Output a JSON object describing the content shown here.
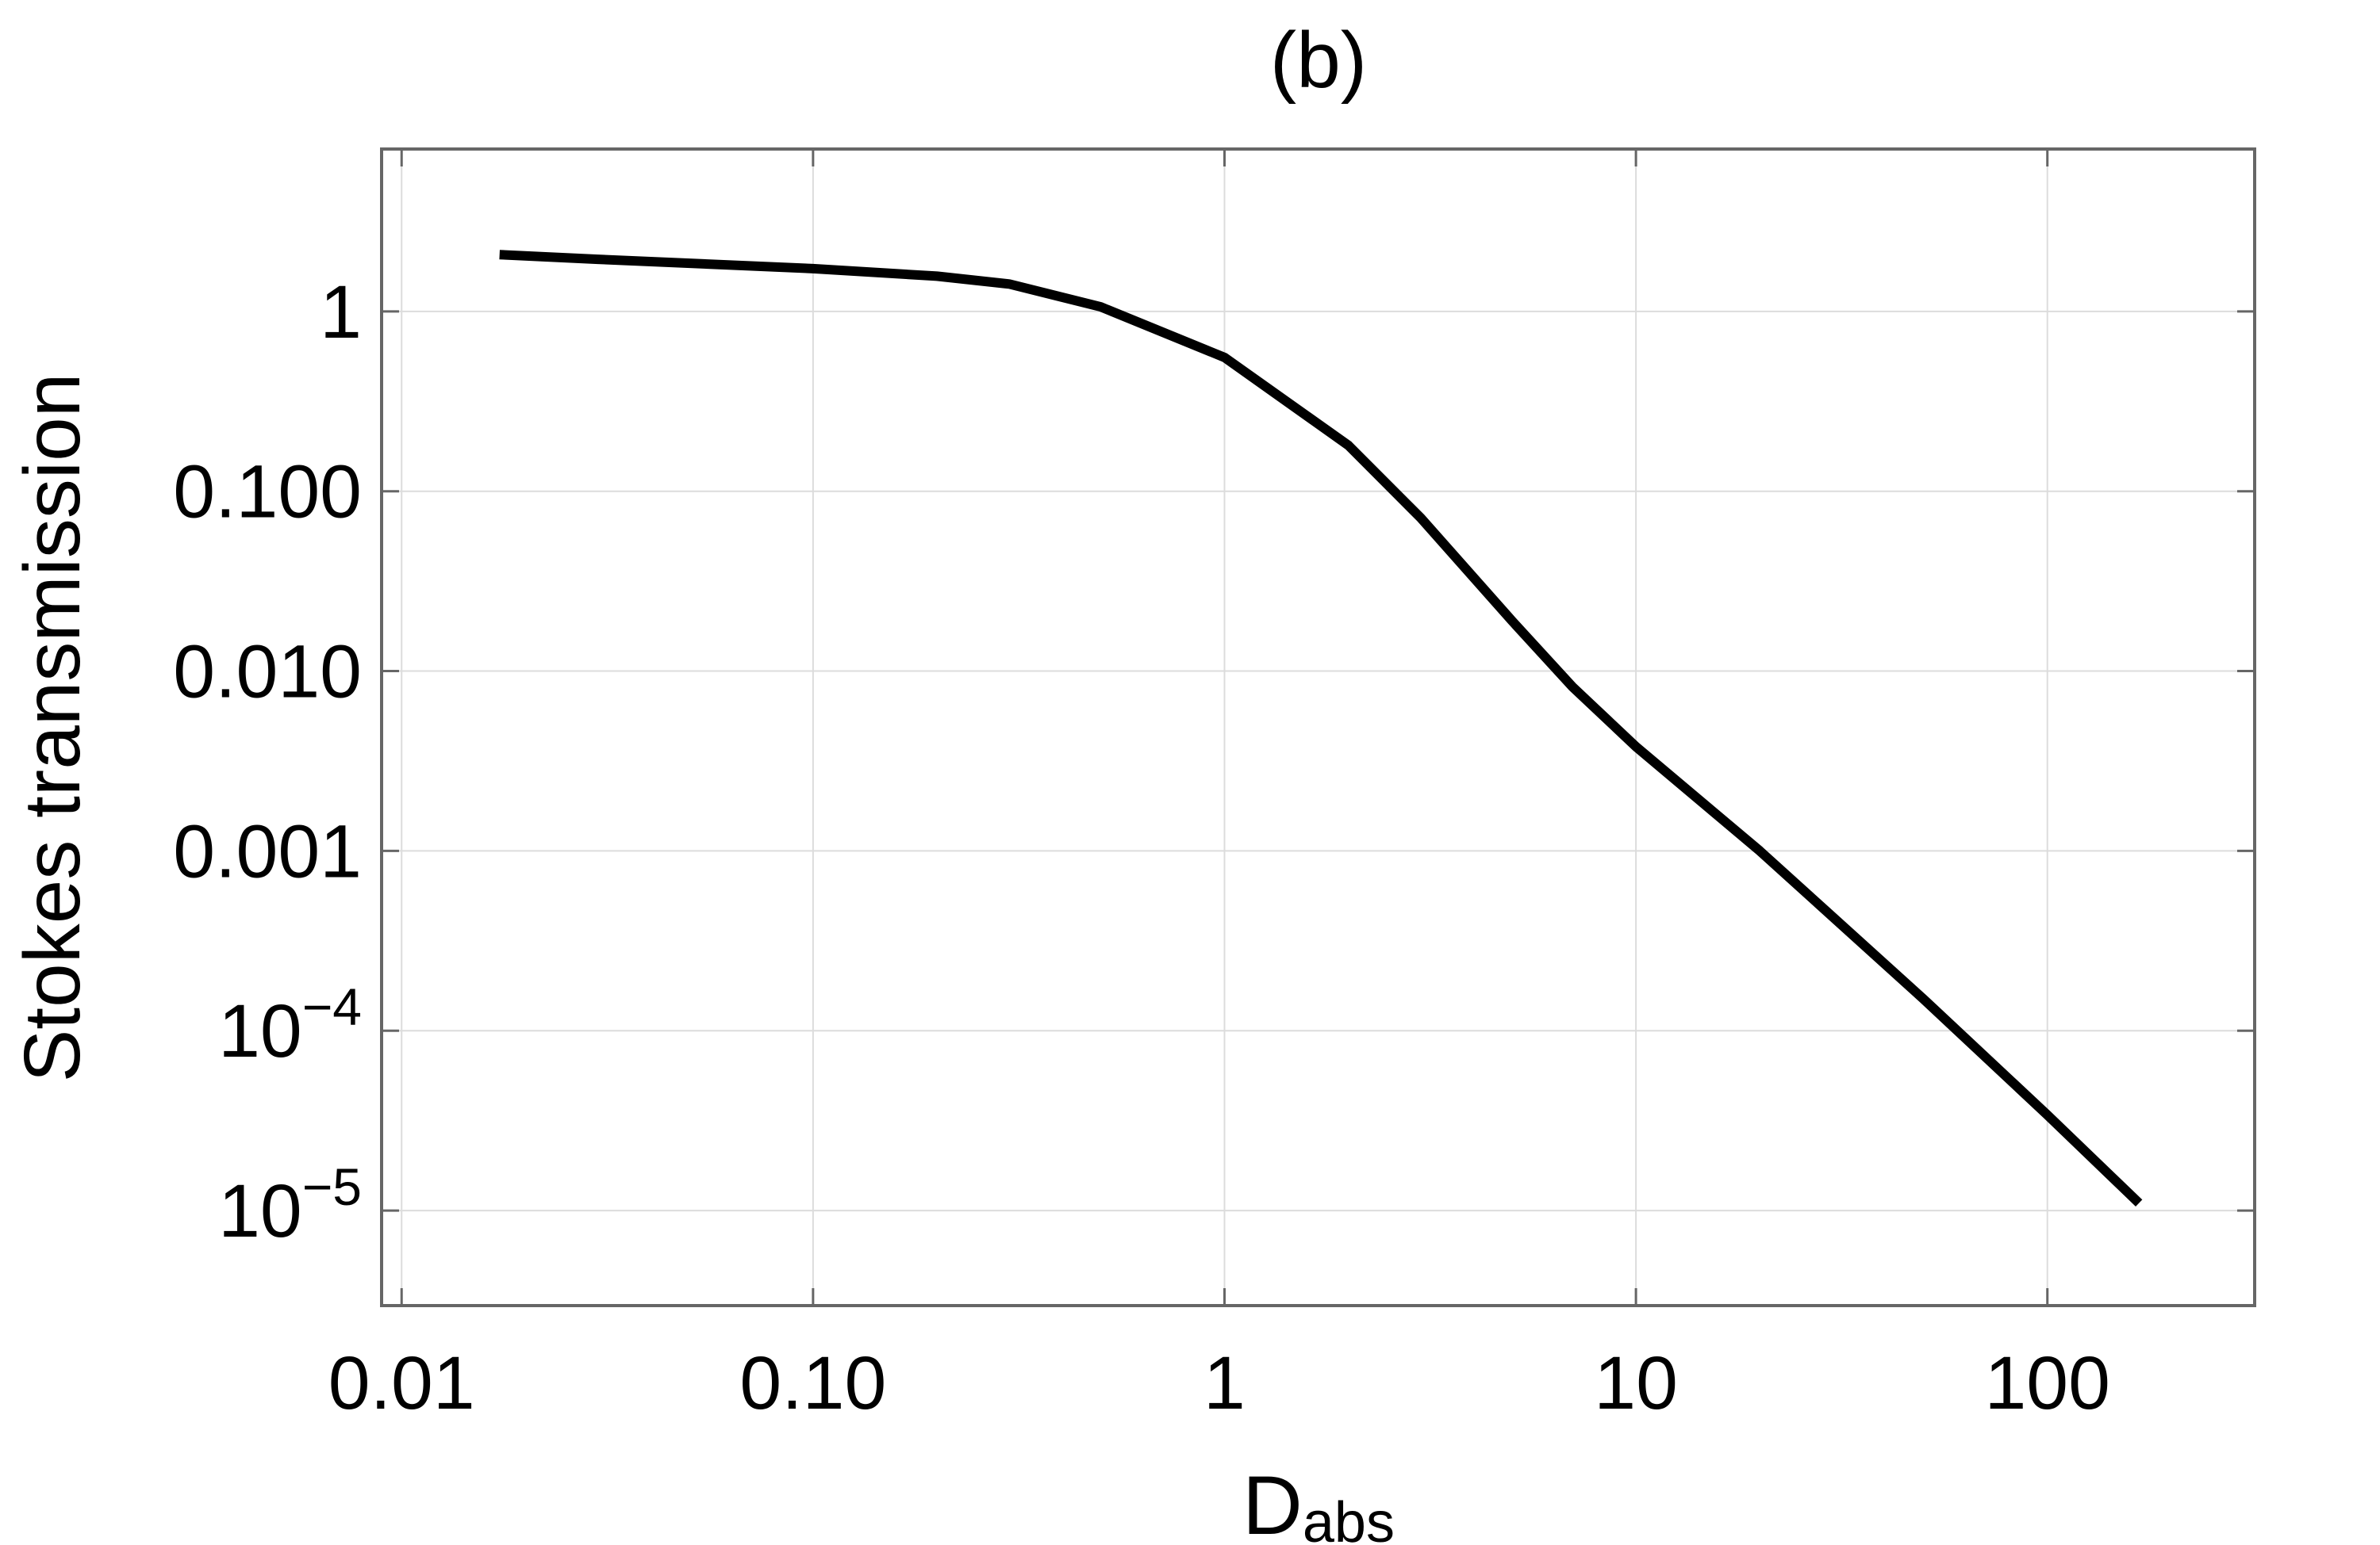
{
  "chart_data": {
    "type": "line",
    "title": "(b)",
    "xlabel": "D",
    "xlabel_subscript": "abs",
    "ylabel": "Stokes transmission",
    "x_log": true,
    "y_log": true,
    "grid": true,
    "xlim": [
      0.00894,
      319
    ],
    "ylim": [
      2.96e-06,
      8.0
    ],
    "xticks": [
      0.01,
      {
        "value": 0.1,
        "label": "0.10"
      },
      1,
      10,
      100
    ],
    "yticks": [
      {
        "value": 1e-05,
        "label": "10",
        "superscript": "−5"
      },
      {
        "value": 0.0001,
        "label": "10",
        "superscript": "−4"
      },
      {
        "value": 0.001,
        "label": "0.001"
      },
      {
        "value": 0.01,
        "label": "0.010"
      },
      {
        "value": 0.1,
        "label": "0.100"
      },
      1
    ],
    "series": [
      {
        "color": "#000000",
        "x": [
          0.0173,
          0.03,
          0.1,
          0.2,
          0.3,
          0.5,
          1,
          2,
          3,
          5,
          7,
          10,
          20,
          50,
          100,
          167
        ],
        "values": [
          2.07,
          1.95,
          1.73,
          1.57,
          1.42,
          1.06,
          0.555,
          0.18,
          0.071,
          0.019,
          0.0082,
          0.0038,
          0.001,
          0.00015,
          3.4e-05,
          1.1e-05
        ]
      }
    ]
  }
}
